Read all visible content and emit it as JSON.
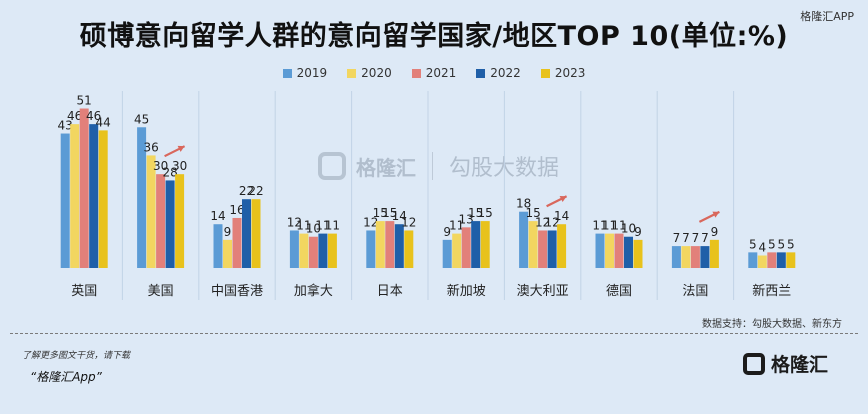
{
  "header": {
    "title": "硕博意向留学人群的意向留学国家/地区TOP 10(单位:%)",
    "corner_mark": "格隆汇APP"
  },
  "watermark": {
    "brand": "格隆汇",
    "brand2": "勾股大数据"
  },
  "chart_data": {
    "type": "bar",
    "title": "硕博意向留学人群的意向留学国家/地区TOP 10(单位:%)",
    "categories": [
      "英国",
      "美国",
      "中国香港",
      "加拿大",
      "日本",
      "新加坡",
      "澳大利亚",
      "德国",
      "法国",
      "新西兰"
    ],
    "series": [
      {
        "name": "2019",
        "color": "#5b9bd5",
        "values": [
          43,
          45,
          14,
          12,
          12,
          9,
          18,
          11,
          7,
          5
        ]
      },
      {
        "name": "2020",
        "color": "#f2d660",
        "values": [
          46,
          36,
          9,
          11,
          15,
          11,
          15,
          11,
          7,
          4
        ]
      },
      {
        "name": "2021",
        "color": "#e2807a",
        "values": [
          51,
          30,
          16,
          10,
          15,
          13,
          12,
          11,
          7,
          5
        ]
      },
      {
        "name": "2022",
        "color": "#1f5fa8",
        "values": [
          46,
          28,
          22,
          11,
          14,
          15,
          12,
          10,
          7,
          5
        ]
      },
      {
        "name": "2023",
        "color": "#e8c21c",
        "values": [
          44,
          30,
          22,
          11,
          12,
          15,
          14,
          9,
          9,
          5
        ]
      }
    ],
    "ylim": [
      0,
      55
    ],
    "legend_position": "top",
    "grid": false,
    "trend_arrows_on": [
      "美国",
      "澳大利亚",
      "法国"
    ]
  },
  "footer": {
    "source": "数据支持：勾股大数据、新东方",
    "footnote": "了解更多图文干货，请下载",
    "app_name": "“格隆汇App”",
    "logo_text": "格隆汇"
  }
}
